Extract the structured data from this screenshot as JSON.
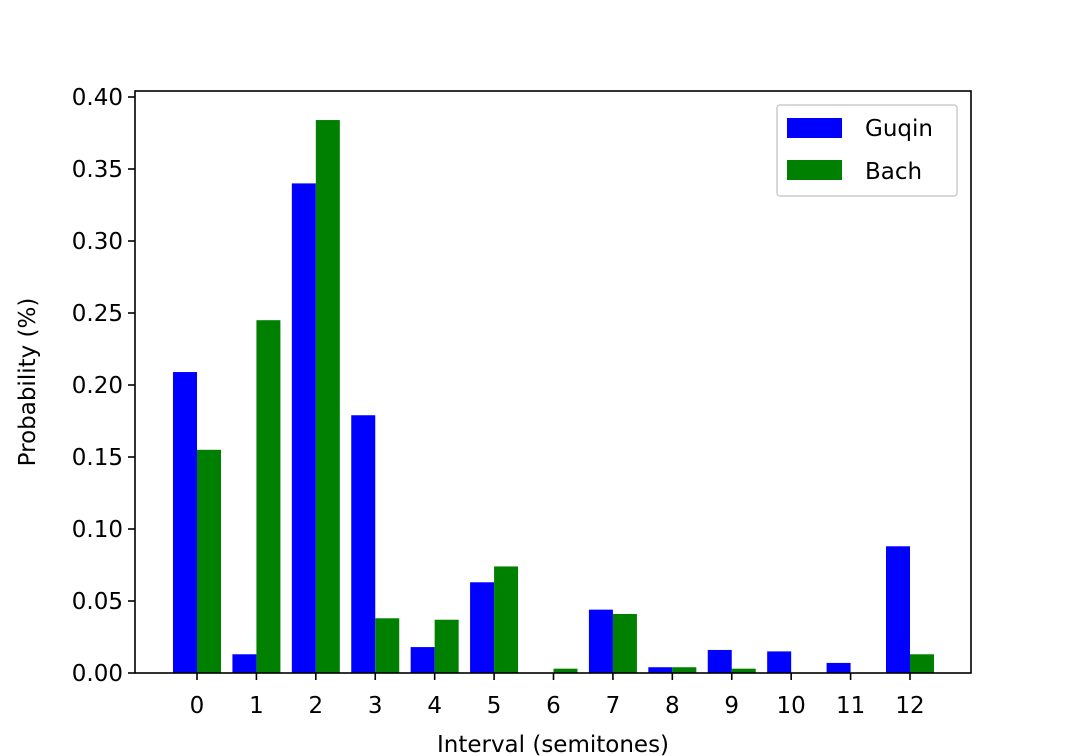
{
  "chart_data": {
    "type": "bar",
    "title": "",
    "xlabel": "Interval (semitones)",
    "ylabel": "Probability (%)",
    "categories": [
      "0",
      "1",
      "2",
      "3",
      "4",
      "5",
      "6",
      "7",
      "8",
      "9",
      "10",
      "11",
      "12"
    ],
    "ylim": [
      0,
      0.4
    ],
    "yticks": [
      "0.00",
      "0.05",
      "0.10",
      "0.15",
      "0.20",
      "0.25",
      "0.30",
      "0.35",
      "0.40"
    ],
    "legend_position": "top-right",
    "grid": false,
    "series": [
      {
        "name": "Guqin",
        "color": "#0000ff",
        "values": [
          0.209,
          0.013,
          0.34,
          0.179,
          0.018,
          0.063,
          0.0,
          0.044,
          0.004,
          0.016,
          0.015,
          0.007,
          0.088
        ]
      },
      {
        "name": "Bach",
        "color": "#008000",
        "values": [
          0.155,
          0.245,
          0.384,
          0.038,
          0.037,
          0.074,
          0.003,
          0.041,
          0.004,
          0.003,
          0.0,
          0.0,
          0.013
        ]
      }
    ]
  }
}
